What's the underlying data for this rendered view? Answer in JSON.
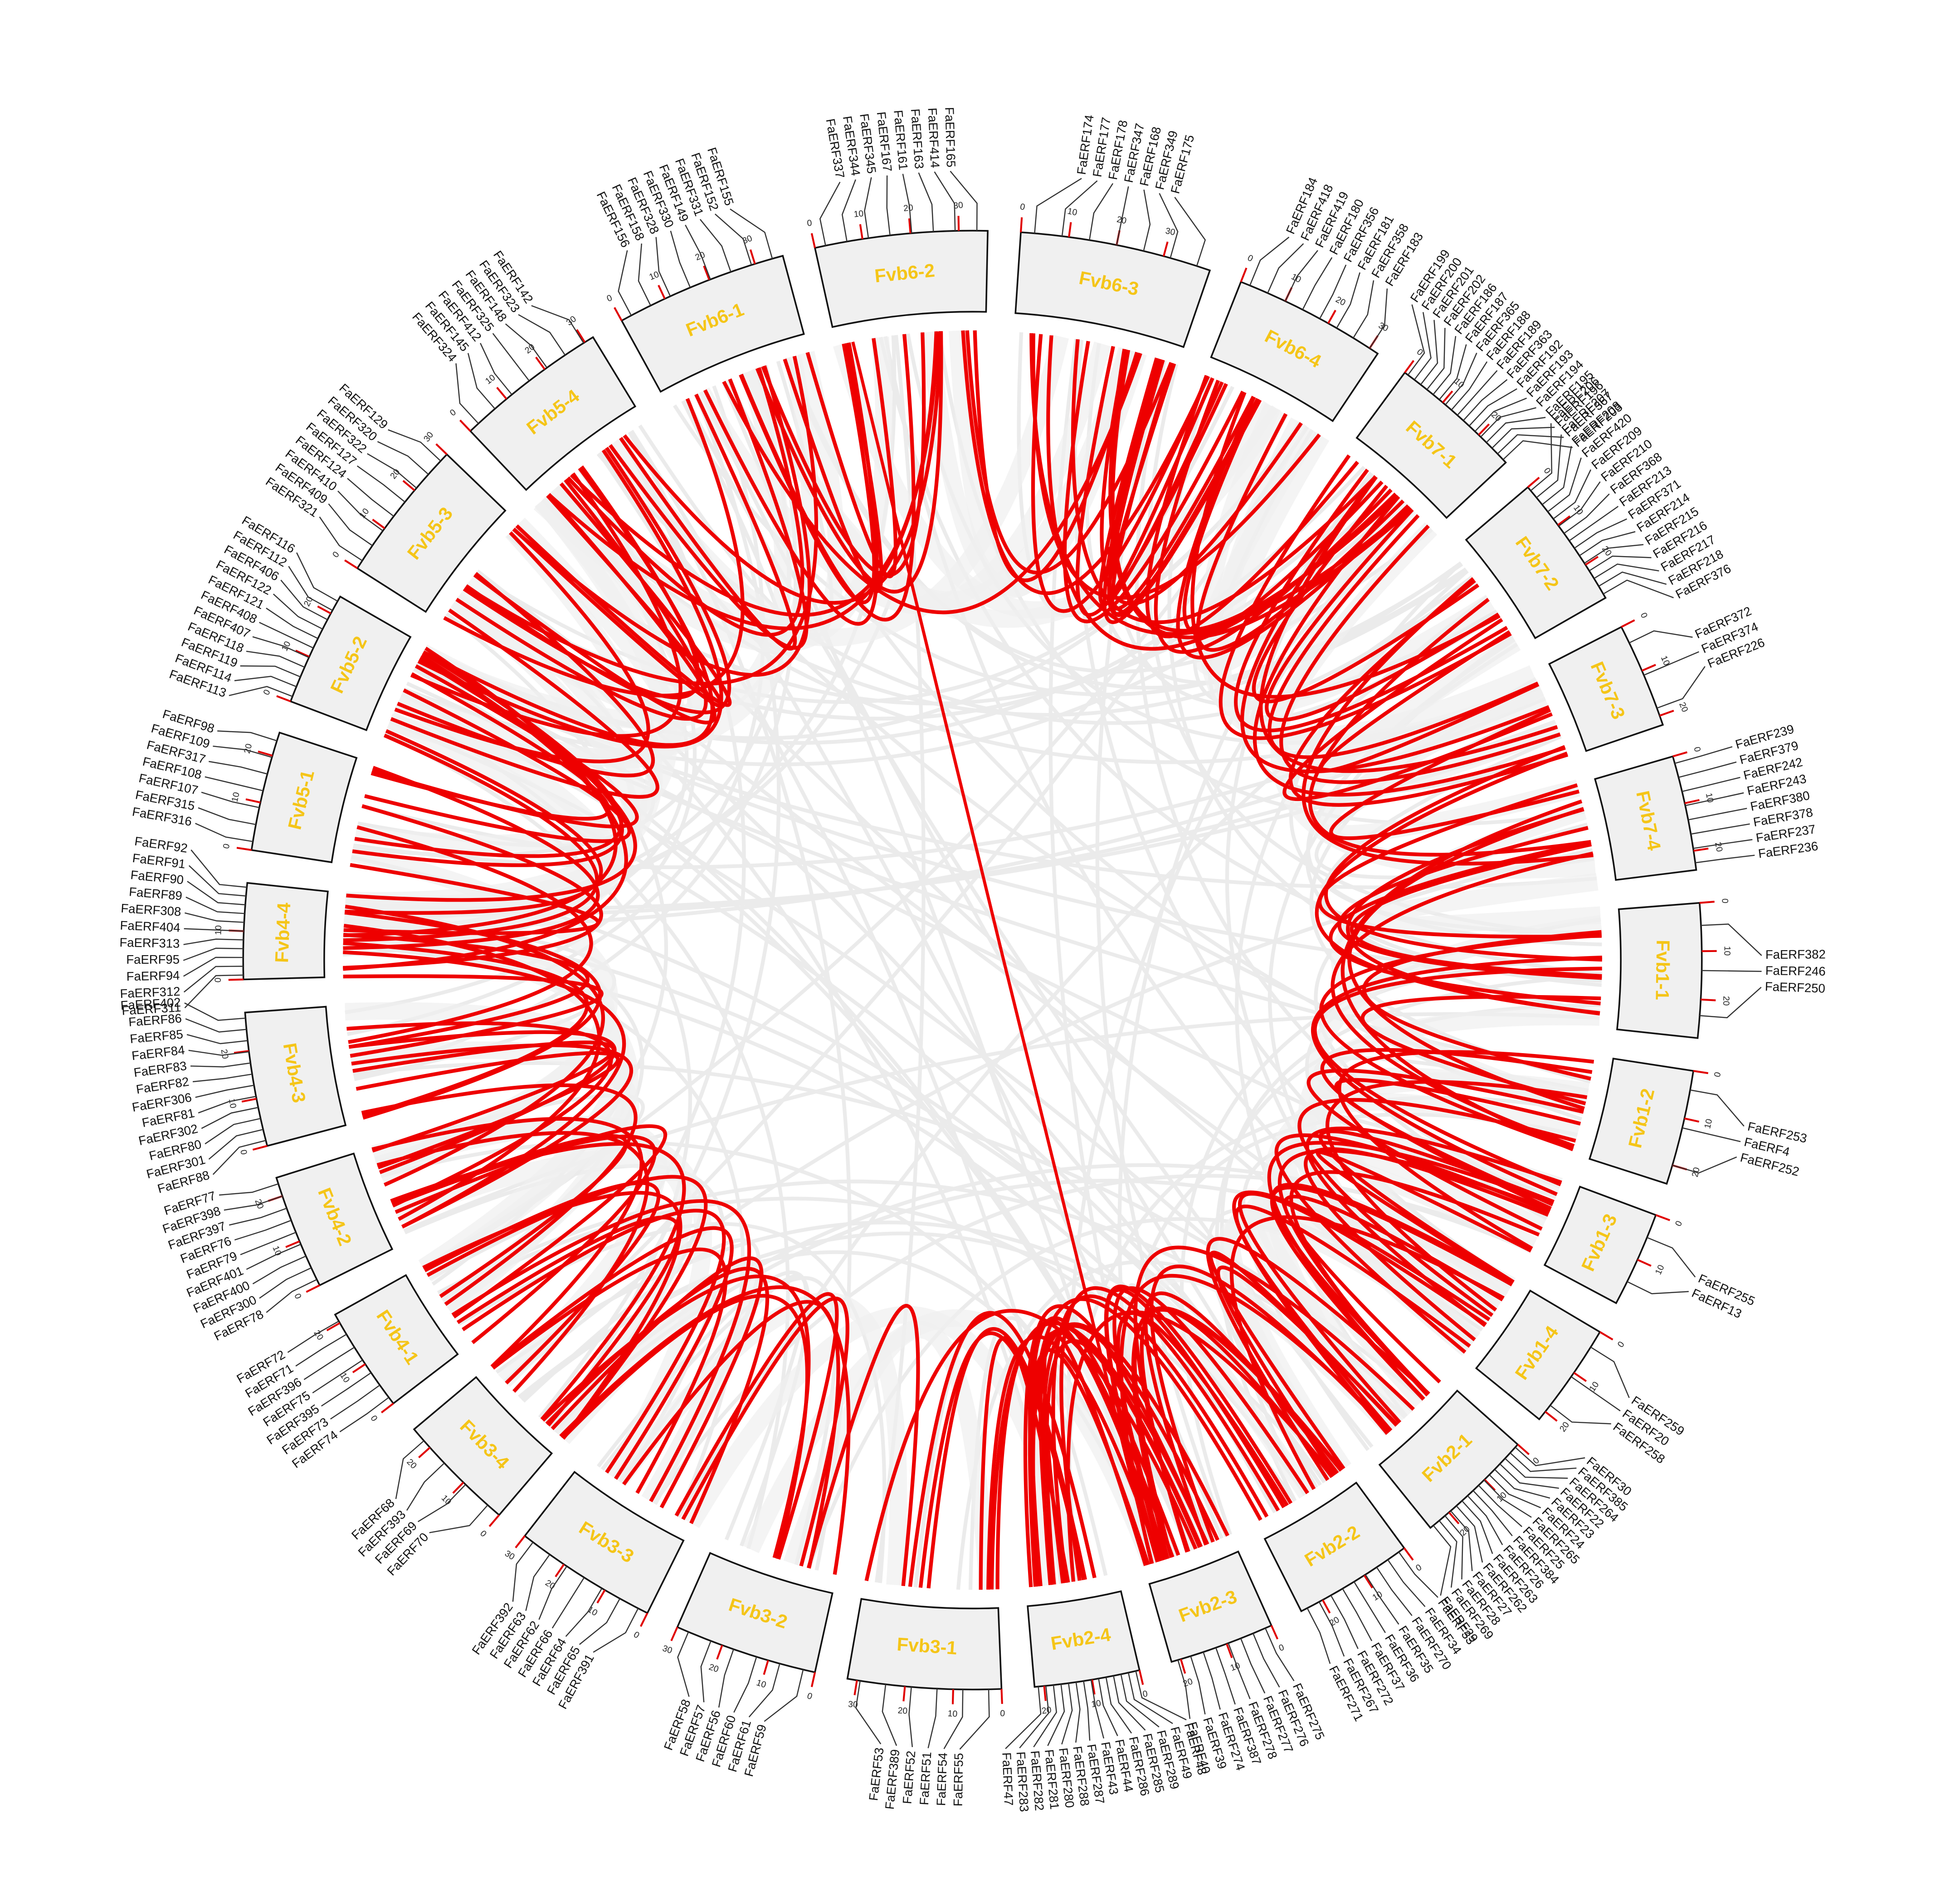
{
  "chart_data": {
    "type": "circos",
    "chromosomes": [
      {
        "name": "Fvb1-1",
        "xlim": [
          0,
          28
        ],
        "ticks": [
          0,
          10,
          20
        ],
        "genes": [
          "FaERF382",
          "FaERF246",
          "FaERF250"
        ]
      },
      {
        "name": "Fvb1-2",
        "xlim": [
          0,
          24
        ],
        "ticks": [
          0,
          10,
          20
        ],
        "genes": [
          "FaERF253",
          "FaERF4",
          "FaERF252"
        ]
      },
      {
        "name": "Fvb1-3",
        "xlim": [
          0,
          20
        ],
        "ticks": [
          0,
          10
        ],
        "genes": [
          "FaERF255",
          "FaERF13"
        ]
      },
      {
        "name": "Fvb1-4",
        "xlim": [
          0,
          22
        ],
        "ticks": [
          0,
          10,
          20
        ],
        "genes": [
          "FaERF259",
          "FaERF20",
          "FaERF258"
        ]
      },
      {
        "name": "Fvb2-1",
        "xlim": [
          0,
          25
        ],
        "ticks": [
          0,
          10,
          20
        ],
        "genes": [
          "FaERF30",
          "FaERF385",
          "FaERF264",
          "FaERF22",
          "FaERF23",
          "FaERF24",
          "FaERF265",
          "FaERF25",
          "FaERF384",
          "FaERF26",
          "FaERF263",
          "FaERF262",
          "FaERF27",
          "FaERF28",
          "FaERF269",
          "FaERF29"
        ]
      },
      {
        "name": "Fvb2-2",
        "xlim": [
          0,
          25
        ],
        "ticks": [
          0,
          10,
          20
        ],
        "genes": [
          "FaERF33",
          "FaERF34",
          "FaERF270",
          "FaERF35",
          "FaERF36",
          "FaERF37",
          "FaERF272",
          "FaERF267",
          "FaERF271"
        ]
      },
      {
        "name": "Fvb2-3",
        "xlim": [
          0,
          22
        ],
        "ticks": [
          0,
          10,
          20
        ],
        "genes": [
          "FaERF275",
          "FaERF276",
          "FaERF277",
          "FaERF278",
          "FaERF387",
          "FaERF274",
          "FaERF39",
          "FaERF40"
        ]
      },
      {
        "name": "Fvb2-4",
        "xlim": [
          0,
          22
        ],
        "ticks": [
          0,
          10,
          20
        ],
        "genes": [
          "FaERF48",
          "FaERF49",
          "FaERF289",
          "FaERF285",
          "FaERF286",
          "FaERF44",
          "FaERF43",
          "FaERF287",
          "FaERF288",
          "FaERF280",
          "FaERF281",
          "FaERF282",
          "FaERF283",
          "FaERF47"
        ]
      },
      {
        "name": "Fvb3-1",
        "xlim": [
          0,
          32
        ],
        "ticks": [
          0,
          10,
          20,
          30
        ],
        "genes": [
          "FaERF55",
          "FaERF54",
          "FaERF51",
          "FaERF52",
          "FaERF389",
          "FaERF53"
        ]
      },
      {
        "name": "Fvb3-2",
        "xlim": [
          0,
          30
        ],
        "ticks": [
          0,
          10,
          20,
          30
        ],
        "genes": [
          "FaERF59",
          "FaERF61",
          "FaERF60",
          "FaERF56",
          "FaERF57",
          "FaERF58"
        ]
      },
      {
        "name": "Fvb3-3",
        "xlim": [
          0,
          30
        ],
        "ticks": [
          0,
          10,
          20,
          30
        ],
        "genes": [
          "FaERF391",
          "FaERF65",
          "FaERF64",
          "FaERF66",
          "FaERF62",
          "FaERF63",
          "FaERF392"
        ]
      },
      {
        "name": "Fvb3-4",
        "xlim": [
          0,
          25
        ],
        "ticks": [
          0,
          10,
          20
        ],
        "genes": [
          "FaERF70",
          "FaERF69",
          "FaERF393",
          "FaERF68"
        ]
      },
      {
        "name": "Fvb4-1",
        "xlim": [
          0,
          22
        ],
        "ticks": [
          0,
          10,
          20
        ],
        "genes": [
          "FaERF74",
          "FaERF73",
          "FaERF395",
          "FaERF75",
          "FaERF396",
          "FaERF71",
          "FaERF72"
        ]
      },
      {
        "name": "Fvb4-2",
        "xlim": [
          0,
          24
        ],
        "ticks": [
          0,
          10,
          20
        ],
        "genes": [
          "FaERF78",
          "FaERF300",
          "FaERF400",
          "FaERF401",
          "FaERF79",
          "FaERF76",
          "FaERF397",
          "FaERF398",
          "FaERF77"
        ]
      },
      {
        "name": "Fvb4-3",
        "xlim": [
          0,
          28
        ],
        "ticks": [
          0,
          10,
          20
        ],
        "genes": [
          "FaERF88",
          "FaERF301",
          "FaERF80",
          "FaERF302",
          "FaERF81",
          "FaERF306",
          "FaERF82",
          "FaERF83",
          "FaERF84",
          "FaERF85",
          "FaERF86",
          "FaERF402"
        ]
      },
      {
        "name": "Fvb4-4",
        "xlim": [
          0,
          20
        ],
        "ticks": [
          0,
          10
        ],
        "genes": [
          "FaERF311",
          "FaERF312",
          "FaERF94",
          "FaERF95",
          "FaERF313",
          "FaERF404",
          "FaERF308",
          "FaERF89",
          "FaERF90",
          "FaERF91",
          "FaERF92"
        ]
      },
      {
        "name": "Fvb5-1",
        "xlim": [
          0,
          25
        ],
        "ticks": [
          0,
          10,
          20
        ],
        "genes": [
          "FaERF316",
          "FaERF315",
          "FaERF107",
          "FaERF108",
          "FaERF317",
          "FaERF109",
          "FaERF98"
        ]
      },
      {
        "name": "Fvb5-2",
        "xlim": [
          0,
          24
        ],
        "ticks": [
          0,
          10,
          20
        ],
        "genes": [
          "FaERF113",
          "FaERF114",
          "FaERF119",
          "FaERF118",
          "FaERF407",
          "FaERF408",
          "FaERF121",
          "FaERF122",
          "FaERF406",
          "FaERF112",
          "FaERF116"
        ]
      },
      {
        "name": "Fvb5-3",
        "xlim": [
          0,
          30
        ],
        "ticks": [
          0,
          10,
          20,
          30
        ],
        "genes": [
          "FaERF321",
          "FaERF409",
          "FaERF410",
          "FaERF124",
          "FaERF127",
          "FaERF322",
          "FaERF320",
          "FaERF129"
        ]
      },
      {
        "name": "Fvb5-4",
        "xlim": [
          0,
          32
        ],
        "ticks": [
          0,
          10,
          20,
          30
        ],
        "genes": [
          "FaERF324",
          "FaERF145",
          "FaERF412",
          "FaERF325",
          "FaERF148",
          "FaERF323",
          "FaERF142"
        ]
      },
      {
        "name": "Fvb6-1",
        "xlim": [
          0,
          36
        ],
        "ticks": [
          0,
          10,
          20,
          30
        ],
        "genes": [
          "FaERF156",
          "FaERF158",
          "FaERF328",
          "FaERF330",
          "FaERF149",
          "FaERF331",
          "FaERF152",
          "FaERF155"
        ]
      },
      {
        "name": "Fvb6-2",
        "xlim": [
          0,
          36
        ],
        "ticks": [
          0,
          10,
          20,
          30
        ],
        "genes": [
          "FaERF337",
          "FaERF344",
          "FaERF345",
          "FaERF167",
          "FaERF161",
          "FaERF163",
          "FaERF414",
          "FaERF165"
        ]
      },
      {
        "name": "Fvb6-3",
        "xlim": [
          0,
          40
        ],
        "ticks": [
          0,
          10,
          20,
          30
        ],
        "genes": [
          "FaERF174",
          "FaERF177",
          "FaERF178",
          "FaERF347",
          "FaERF168",
          "FaERF349",
          "FaERF175"
        ]
      },
      {
        "name": "Fvb6-4",
        "xlim": [
          0,
          32
        ],
        "ticks": [
          0,
          10,
          20,
          30
        ],
        "genes": [
          "FaERF184",
          "FaERF418",
          "FaERF419",
          "FaERF180",
          "FaERF356",
          "FaERF181",
          "FaERF358",
          "FaERF183"
        ]
      },
      {
        "name": "Fvb7-1",
        "xlim": [
          0,
          28
        ],
        "ticks": [
          0,
          10,
          20
        ],
        "genes": [
          "FaERF199",
          "FaERF200",
          "FaERF201",
          "FaERF202",
          "FaERF186",
          "FaERF187",
          "FaERF365",
          "FaERF188",
          "FaERF189",
          "FaERF363",
          "FaERF192",
          "FaERF193",
          "FaERF194",
          "FaERF195",
          "FaERF196",
          "FaERF367",
          "FaERF203"
        ]
      },
      {
        "name": "Fvb7-2",
        "xlim": [
          0,
          28
        ],
        "ticks": [
          0,
          10,
          20
        ],
        "genes": [
          "FaERF206",
          "FaERF207",
          "FaERF208",
          "FaERF420",
          "FaERF209",
          "FaERF210",
          "FaERF368",
          "FaERF213",
          "FaERF371",
          "FaERF214",
          "FaERF215",
          "FaERF216",
          "FaERF217",
          "FaERF218",
          "FaERF376"
        ]
      },
      {
        "name": "Fvb7-3",
        "xlim": [
          0,
          22
        ],
        "ticks": [
          0,
          10,
          20
        ],
        "genes": [
          "FaERF372",
          "FaERF374",
          "FaERF226"
        ]
      },
      {
        "name": "Fvb7-4",
        "xlim": [
          0,
          24
        ],
        "ticks": [
          0,
          10,
          20
        ],
        "genes": [
          "FaERF239",
          "FaERF379",
          "FaERF242",
          "FaERF243",
          "FaERF380",
          "FaERF378",
          "FaERF237",
          "FaERF236"
        ]
      }
    ]
  }
}
